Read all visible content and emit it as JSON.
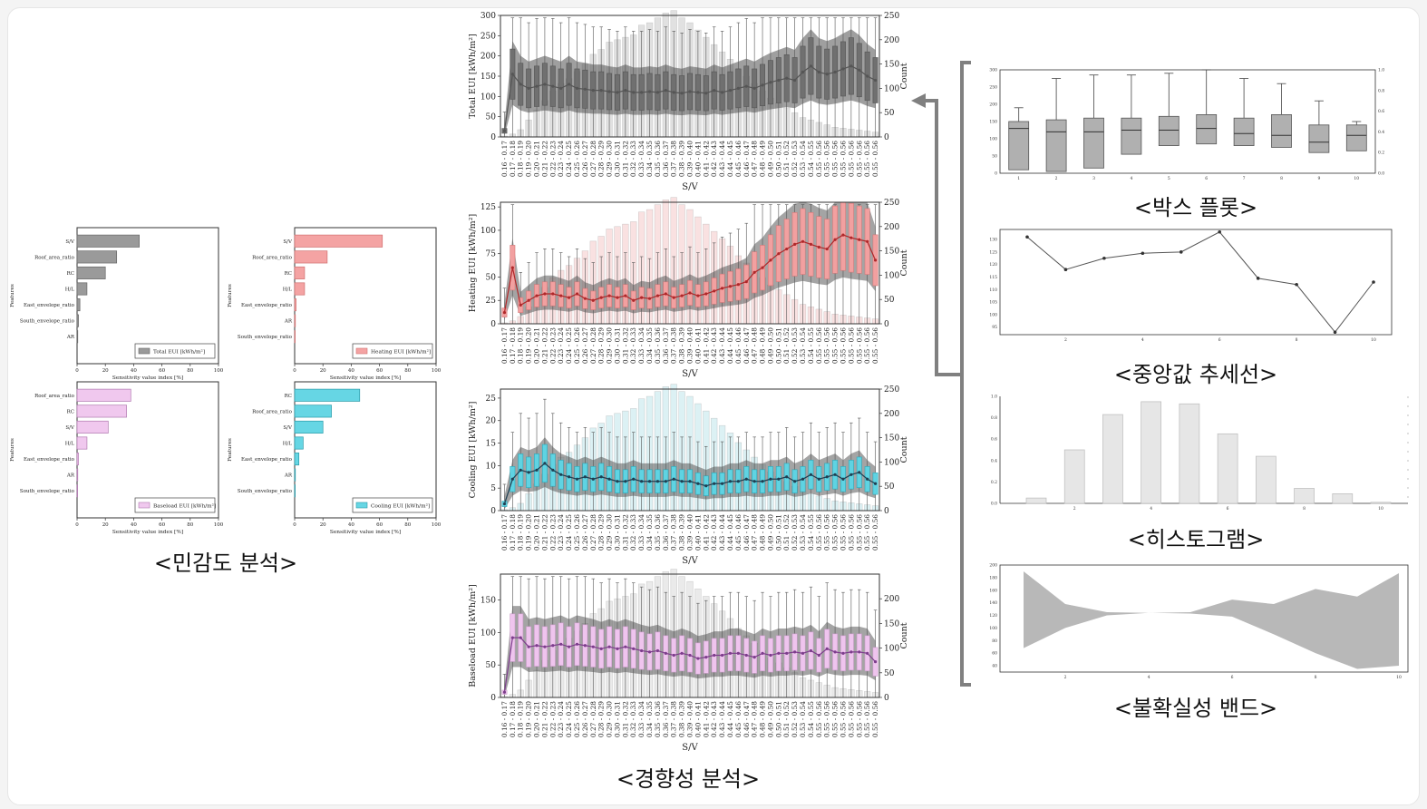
{
  "captions": {
    "sensitivity": "<민감도 분석>",
    "trend": "<경향성 분석>",
    "boxplot": "<박스 플롯>",
    "median_line": "<중앙값 추세선>",
    "histogram": "<히스토그램>",
    "band": "<불확실성 밴드>"
  },
  "colors": {
    "total": "#9a9a9a",
    "heating": "#f4a3a3",
    "baseload": "#f0c8ee",
    "cooling": "#66d6e4",
    "total_line": "#555555",
    "heating_line": "#b0282a",
    "cooling_line": "#1f3f52",
    "baseload_line": "#7d3d8c",
    "grey_band": "#8a8a8a"
  },
  "chart_data": [
    {
      "type": "bar",
      "orientation": "horizontal",
      "id": "sens-total",
      "categories": [
        "S/V",
        "Roof_area_ratio",
        "RC",
        "H/L",
        "East_envelope_ratio",
        "South_envelope_ratio",
        "AR"
      ],
      "values": [
        44,
        28,
        20,
        7,
        2,
        1,
        0.5
      ],
      "legend": "Total EUI [kWh/m²]",
      "xlabel": "Sensitivity value index [%]",
      "ylabel": "Features",
      "xlim": [
        0,
        100
      ],
      "xticks": [
        "0",
        "20",
        "40",
        "60",
        "80",
        "100"
      ],
      "legend_position": "bottom-right"
    },
    {
      "type": "bar",
      "orientation": "horizontal",
      "id": "sens-heating",
      "categories": [
        "S/V",
        "Roof_area_ratio",
        "RC",
        "H/L",
        "East_envelope_ratio",
        "AR",
        "South_envelope_ratio"
      ],
      "values": [
        62,
        23,
        7,
        7,
        1,
        0.5,
        0.3
      ],
      "legend": "Heating EUI [kWh/m²]",
      "xlabel": "Sensitivity value index [%]",
      "ylabel": "Features",
      "xlim": [
        0,
        100
      ],
      "xticks": [
        "0",
        "20",
        "40",
        "60",
        "80",
        "100"
      ],
      "legend_position": "bottom-right"
    },
    {
      "type": "bar",
      "orientation": "horizontal",
      "id": "sens-baseload",
      "categories": [
        "Roof_area_ratio",
        "RC",
        "S/V",
        "H/L",
        "East_envelope_ratio",
        "AR",
        "South_envelope_ratio"
      ],
      "values": [
        38,
        35,
        22,
        7,
        1,
        0.5,
        0.3
      ],
      "legend": "Baseload EUI [kWh/m²]",
      "xlabel": "Sensitivity value index [%]",
      "ylabel": "Features",
      "xlim": [
        0,
        100
      ],
      "xticks": [
        "0",
        "20",
        "40",
        "60",
        "80",
        "100"
      ],
      "legend_position": "bottom-right"
    },
    {
      "type": "bar",
      "orientation": "horizontal",
      "id": "sens-cooling",
      "categories": [
        "RC",
        "Roof_area_ratio",
        "S/V",
        "H/L",
        "East_envelope_ratio",
        "AR",
        "South_envelope_ratio"
      ],
      "values": [
        46,
        26,
        20,
        6,
        3,
        0.5,
        0.3
      ],
      "legend": "Cooling EUI [kWh/m²]",
      "xlabel": "Sensitivity value index [%]",
      "ylabel": "Features",
      "xlim": [
        0,
        100
      ],
      "xticks": [
        "0",
        "20",
        "40",
        "60",
        "80",
        "100"
      ],
      "legend_position": "bottom-right"
    },
    {
      "type": "box",
      "id": "trend-total",
      "ylabel": "Total EUI [kWh/m²]",
      "ylabel_right": "Count",
      "xlabel": "S/V",
      "ylim": [
        0,
        300
      ],
      "yticks": [
        0,
        50,
        100,
        150,
        200,
        250,
        300
      ],
      "ylim_right": [
        0,
        250
      ],
      "yticks_right": [
        0,
        50,
        100,
        150,
        200,
        250
      ],
      "medians": [
        15,
        155,
        130,
        120,
        125,
        130,
        125,
        120,
        130,
        120,
        118,
        115,
        115,
        112,
        110,
        115,
        110,
        110,
        112,
        110,
        115,
        110,
        108,
        112,
        110,
        108,
        115,
        110,
        115,
        120,
        125,
        120,
        128,
        135,
        140,
        145,
        140,
        160,
        175,
        160,
        155,
        160,
        168,
        175,
        165,
        150,
        140
      ],
      "counts": [
        2,
        6,
        15,
        35,
        55,
        75,
        95,
        110,
        120,
        135,
        150,
        170,
        180,
        195,
        200,
        205,
        210,
        230,
        235,
        245,
        255,
        260,
        245,
        235,
        220,
        205,
        190,
        175,
        160,
        140,
        125,
        110,
        95,
        80,
        70,
        60,
        50,
        40,
        35,
        30,
        25,
        20,
        18,
        16,
        14,
        12,
        10
      ]
    },
    {
      "type": "box",
      "id": "trend-heating",
      "ylabel": "Heating EUI [kWh/m²]",
      "ylabel_right": "Count",
      "xlabel": "S/V",
      "ylim": [
        0,
        130
      ],
      "yticks": [
        0,
        25,
        50,
        75,
        100,
        125
      ],
      "ylim_right": [
        0,
        250
      ],
      "yticks_right": [
        0,
        50,
        100,
        150,
        200,
        250
      ],
      "medians": [
        12,
        60,
        20,
        25,
        30,
        32,
        32,
        30,
        28,
        32,
        27,
        25,
        28,
        30,
        28,
        30,
        25,
        28,
        27,
        30,
        32,
        28,
        30,
        33,
        30,
        32,
        35,
        38,
        40,
        42,
        45,
        55,
        60,
        68,
        75,
        80,
        85,
        88,
        85,
        82,
        80,
        90,
        95,
        92,
        90,
        88,
        68
      ],
      "counts": [
        2,
        6,
        15,
        35,
        55,
        75,
        95,
        110,
        120,
        135,
        150,
        170,
        180,
        195,
        200,
        205,
        210,
        230,
        235,
        245,
        255,
        260,
        245,
        235,
        220,
        205,
        190,
        175,
        160,
        140,
        125,
        110,
        95,
        80,
        70,
        60,
        50,
        40,
        35,
        30,
        25,
        20,
        18,
        16,
        14,
        12,
        10
      ]
    },
    {
      "type": "box",
      "id": "trend-cooling",
      "ylabel": "Cooling EUI [kWh/m²]",
      "ylabel_right": "Count",
      "xlabel": "S/V",
      "ylim": [
        0,
        27
      ],
      "yticks": [
        0,
        5,
        10,
        15,
        20,
        25
      ],
      "ylim_right": [
        0,
        250
      ],
      "yticks_right": [
        0,
        50,
        100,
        150,
        200,
        250
      ],
      "medians": [
        1.5,
        7,
        9,
        8.5,
        9,
        10.5,
        9,
        8,
        7.5,
        7,
        7.5,
        7,
        7.5,
        7,
        6.5,
        6.5,
        7,
        6.5,
        6.5,
        6.5,
        6.5,
        7,
        6.5,
        6.5,
        6,
        5.5,
        6,
        6,
        6.5,
        6.5,
        7,
        6.5,
        6.5,
        7,
        7,
        7.5,
        6.5,
        7,
        8,
        7,
        7.5,
        8,
        7,
        8,
        8.5,
        7,
        6
      ],
      "counts": [
        2,
        6,
        15,
        35,
        55,
        75,
        95,
        110,
        120,
        135,
        150,
        170,
        180,
        195,
        200,
        205,
        210,
        230,
        235,
        245,
        255,
        260,
        245,
        235,
        220,
        205,
        190,
        175,
        160,
        140,
        125,
        110,
        95,
        80,
        70,
        60,
        50,
        40,
        35,
        30,
        25,
        20,
        18,
        16,
        14,
        12,
        10
      ]
    },
    {
      "type": "box",
      "id": "trend-baseload",
      "ylabel": "Baseload EUI [kWh/m²]",
      "ylabel_right": "Count",
      "xlabel": "S/V",
      "ylim": [
        0,
        190
      ],
      "yticks": [
        0,
        50,
        100,
        150
      ],
      "ylim_right": [
        0,
        250
      ],
      "yticks_right": [
        0,
        50,
        100,
        150,
        200
      ],
      "medians": [
        8,
        92,
        92,
        78,
        80,
        78,
        80,
        82,
        78,
        82,
        80,
        78,
        75,
        78,
        75,
        78,
        75,
        72,
        70,
        72,
        68,
        65,
        68,
        65,
        60,
        62,
        65,
        65,
        68,
        68,
        65,
        62,
        68,
        65,
        68,
        68,
        70,
        68,
        72,
        65,
        75,
        70,
        68,
        70,
        70,
        68,
        55
      ],
      "counts": [
        2,
        6,
        15,
        35,
        55,
        75,
        95,
        110,
        120,
        135,
        150,
        170,
        180,
        195,
        200,
        205,
        210,
        230,
        235,
        245,
        255,
        260,
        245,
        235,
        220,
        205,
        190,
        175,
        160,
        140,
        125,
        110,
        95,
        80,
        70,
        60,
        50,
        40,
        35,
        30,
        25,
        20,
        18,
        16,
        14,
        12,
        10
      ]
    },
    {
      "type": "box",
      "id": "mini-boxplot",
      "x": [
        "1",
        "2",
        "3",
        "4",
        "5",
        "6",
        "7",
        "8",
        "9",
        "10"
      ],
      "ylim": [
        0,
        300
      ],
      "yticks": [
        0,
        50,
        100,
        150,
        200,
        250,
        300
      ],
      "yticks_right": [
        "0.0",
        "0.2",
        "0.4",
        "0.6",
        "0.8",
        "1.0"
      ],
      "q1": [
        10,
        5,
        15,
        55,
        80,
        85,
        80,
        75,
        60,
        65
      ],
      "median": [
        130,
        120,
        120,
        125,
        125,
        130,
        115,
        110,
        90,
        110
      ],
      "q3": [
        150,
        155,
        160,
        160,
        165,
        170,
        160,
        170,
        140,
        140
      ],
      "whisker_low": [
        0,
        0,
        0,
        0,
        0,
        0,
        0,
        0,
        0,
        0
      ],
      "whisker_high": [
        190,
        275,
        285,
        285,
        290,
        300,
        275,
        260,
        210,
        150
      ]
    },
    {
      "type": "line",
      "id": "mini-median",
      "x": [
        1,
        2,
        3,
        4,
        5,
        6,
        7,
        8,
        9,
        10
      ],
      "values": [
        131,
        118,
        122.5,
        124.5,
        125,
        133,
        114.5,
        112,
        93,
        113
      ],
      "xticks": [
        "2",
        "4",
        "6",
        "8",
        "10"
      ],
      "yticks": [
        "95",
        "100",
        "105",
        "110",
        "115",
        "120",
        "125",
        "130"
      ],
      "ylim": [
        92,
        134
      ]
    },
    {
      "type": "bar",
      "id": "mini-histogram",
      "x": [
        1,
        2,
        3,
        4,
        5,
        6,
        7,
        8,
        9,
        10
      ],
      "values": [
        0.05,
        0.5,
        0.83,
        0.95,
        0.93,
        0.65,
        0.44,
        0.14,
        0.09,
        0.01
      ],
      "xticks": [
        "2",
        "4",
        "6",
        "8",
        "10"
      ],
      "yticks": [
        "0.0",
        "0.2",
        "0.4",
        "0.6",
        "0.8",
        "1.0"
      ],
      "ylim": [
        0,
        1.0
      ]
    },
    {
      "type": "area",
      "id": "mini-band",
      "x": [
        1,
        2,
        3,
        4,
        5,
        6,
        7,
        8,
        9,
        10
      ],
      "upper": [
        190,
        138,
        125,
        124,
        125,
        145,
        138,
        162,
        150,
        187
      ],
      "lower": [
        68,
        100,
        120,
        124,
        123,
        118,
        90,
        60,
        35,
        40
      ],
      "xticks": [
        "2",
        "4",
        "6",
        "8",
        "10"
      ],
      "yticks": [
        "40",
        "60",
        "80",
        "100",
        "120",
        "140",
        "160",
        "180",
        "200"
      ],
      "ylim": [
        30,
        200
      ]
    }
  ],
  "sv_labels": [
    "0.16 - 0.17",
    "0.17 - 0.18",
    "0.18 - 0.19",
    "0.19 - 0.20",
    "0.20 - 0.21",
    "0.21 - 0.22",
    "0.22 - 0.23",
    "0.23 - 0.24",
    "0.24 - 0.25",
    "0.25 - 0.26",
    "0.26 - 0.27",
    "0.27 - 0.28",
    "0.28 - 0.29",
    "0.29 - 0.30",
    "0.30 - 0.31",
    "0.31 - 0.32",
    "0.32 - 0.33",
    "0.33 - 0.34",
    "0.34 - 0.35",
    "0.35 - 0.36",
    "0.36 - 0.37",
    "0.37 - 0.38",
    "0.38 - 0.39",
    "0.39 - 0.40",
    "0.40 - 0.41",
    "0.41 - 0.42",
    "0.42 - 0.43",
    "0.43 - 0.44",
    "0.44 - 0.45",
    "0.45 - 0.46",
    "0.46 - 0.47",
    "0.47 - 0.48",
    "0.48 - 0.49",
    "0.49 - 0.50",
    "0.50 - 0.51",
    "0.51 - 0.52",
    "0.52 - 0.53",
    "0.53 - 0.54",
    "0.54 - 0.55",
    "0.55 - 0.56",
    "0.55 - 0.56",
    "0.55 - 0.56",
    "0.55 - 0.56",
    "0.55 - 0.56",
    "0.55 - 0.56",
    "0.55 - 0.56",
    "0.55 - 0.56"
  ]
}
